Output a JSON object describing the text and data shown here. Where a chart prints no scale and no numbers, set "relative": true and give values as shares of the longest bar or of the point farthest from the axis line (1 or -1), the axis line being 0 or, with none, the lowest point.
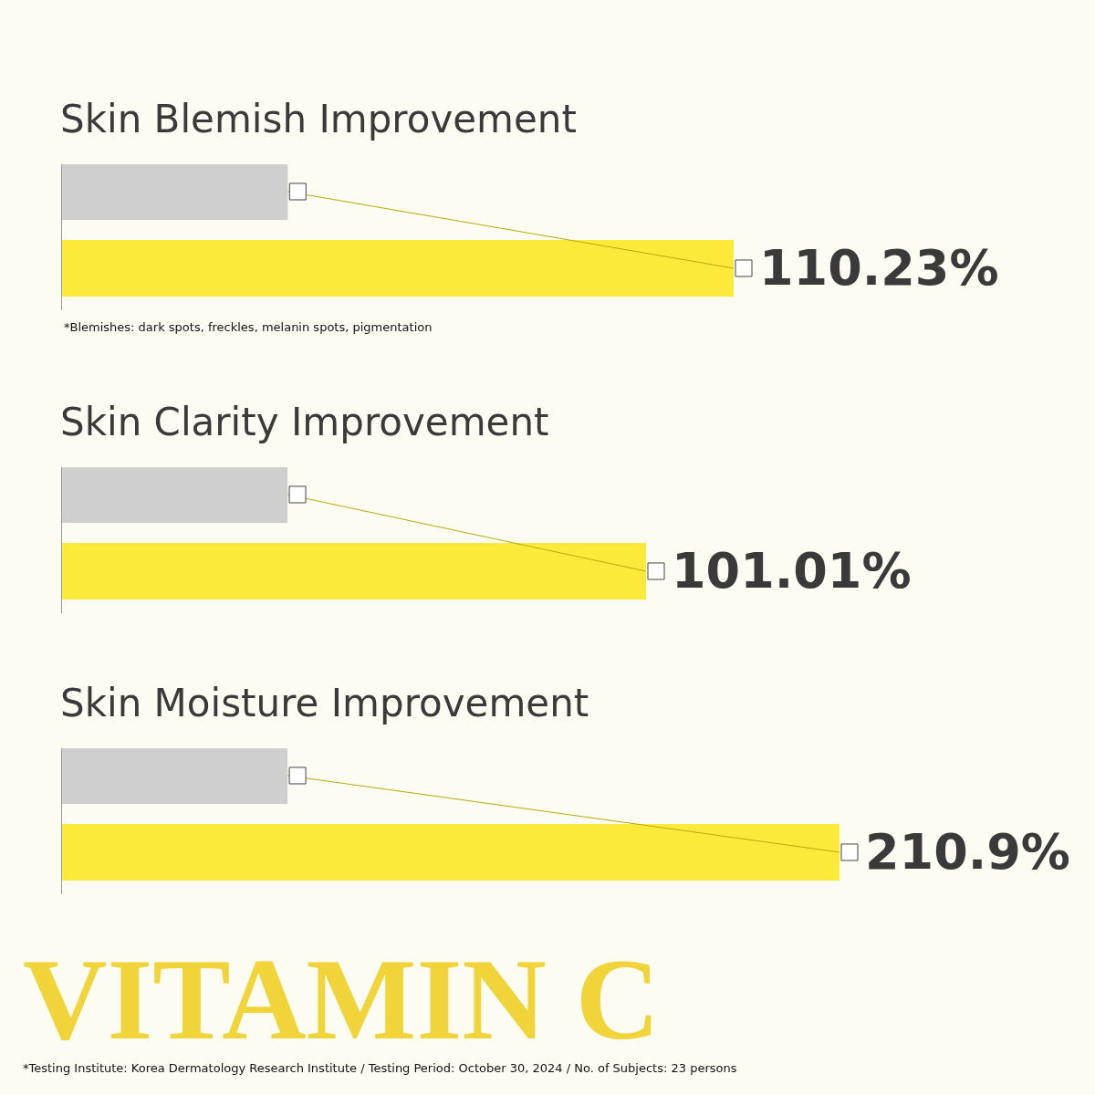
{
  "chart_data": [
    {
      "type": "bar",
      "title": "Skin Blemish Improvement",
      "orientation": "horizontal",
      "relative": true,
      "categories": [
        null,
        null
      ],
      "colors": [
        "#cfcfcf",
        "#fde93a"
      ],
      "values": [
        0.336,
        1
      ],
      "annotations": [
        "110.23%",
        "*Blemishes: dark spots, freckles, melanin spots, pigmentation"
      ]
    },
    {
      "type": "bar",
      "title": "Skin Clarity Improvement",
      "orientation": "horizontal",
      "relative": true,
      "categories": [
        null,
        null
      ],
      "colors": [
        "#cfcfcf",
        "#fde93a"
      ],
      "values": [
        0.386,
        1
      ],
      "annotations": [
        "101.01%"
      ]
    },
    {
      "type": "bar",
      "title": "Skin Moisture Improvement",
      "orientation": "horizontal",
      "relative": true,
      "categories": [
        null,
        null
      ],
      "colors": [
        "#cfcfcf",
        "#fde93a"
      ],
      "values": [
        0.29,
        1
      ],
      "annotations": [
        "210.9%",
        "VITAMIN C",
        "*Testing Institute: Korea Dermatology Research Institute / Testing Period: October 30, 2024 / No. of Subjects: 23 persons"
      ]
    }
  ]
}
